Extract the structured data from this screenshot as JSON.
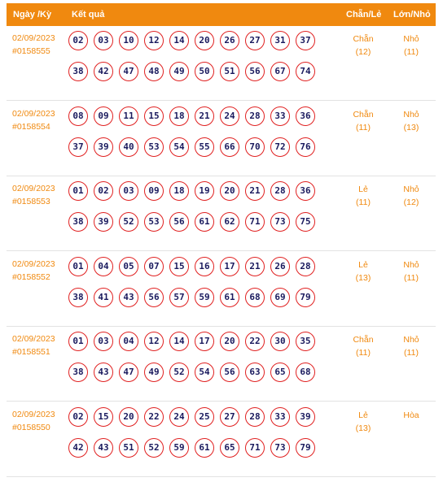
{
  "header": {
    "date_label": "Ngày /Kỳ",
    "result_label": "Kết quả",
    "even_odd_label": "Chẵn/Lẻ",
    "big_small_label": "Lớn/Nhỏ"
  },
  "rows": [
    {
      "date": "02/09/2023",
      "period": "#0158555",
      "balls": [
        "02",
        "03",
        "10",
        "12",
        "14",
        "20",
        "26",
        "27",
        "31",
        "37",
        "38",
        "42",
        "47",
        "48",
        "49",
        "50",
        "51",
        "56",
        "67",
        "74"
      ],
      "even_odd": "Chẵn",
      "even_odd_count": "(12)",
      "big_small": "Nhỏ",
      "big_small_count": "(11)"
    },
    {
      "date": "02/09/2023",
      "period": "#0158554",
      "balls": [
        "08",
        "09",
        "11",
        "15",
        "18",
        "21",
        "24",
        "28",
        "33",
        "36",
        "37",
        "39",
        "40",
        "53",
        "54",
        "55",
        "66",
        "70",
        "72",
        "76"
      ],
      "even_odd": "Chẵn",
      "even_odd_count": "(11)",
      "big_small": "Nhỏ",
      "big_small_count": "(13)"
    },
    {
      "date": "02/09/2023",
      "period": "#0158553",
      "balls": [
        "01",
        "02",
        "03",
        "09",
        "18",
        "19",
        "20",
        "21",
        "28",
        "36",
        "38",
        "39",
        "52",
        "53",
        "56",
        "61",
        "62",
        "71",
        "73",
        "75"
      ],
      "even_odd": "Lẻ",
      "even_odd_count": "(11)",
      "big_small": "Nhỏ",
      "big_small_count": "(12)"
    },
    {
      "date": "02/09/2023",
      "period": "#0158552",
      "balls": [
        "01",
        "04",
        "05",
        "07",
        "15",
        "16",
        "17",
        "21",
        "26",
        "28",
        "38",
        "41",
        "43",
        "56",
        "57",
        "59",
        "61",
        "68",
        "69",
        "79"
      ],
      "even_odd": "Lẻ",
      "even_odd_count": "(13)",
      "big_small": "Nhỏ",
      "big_small_count": "(11)"
    },
    {
      "date": "02/09/2023",
      "period": "#0158551",
      "balls": [
        "01",
        "03",
        "04",
        "12",
        "14",
        "17",
        "20",
        "22",
        "30",
        "35",
        "38",
        "43",
        "47",
        "49",
        "52",
        "54",
        "56",
        "63",
        "65",
        "68"
      ],
      "even_odd": "Chẵn",
      "even_odd_count": "(11)",
      "big_small": "Nhỏ",
      "big_small_count": "(11)"
    },
    {
      "date": "02/09/2023",
      "period": "#0158550",
      "balls": [
        "02",
        "15",
        "20",
        "22",
        "24",
        "25",
        "27",
        "28",
        "33",
        "39",
        "42",
        "43",
        "51",
        "52",
        "59",
        "61",
        "65",
        "71",
        "73",
        "79"
      ],
      "even_odd": "Lẻ",
      "even_odd_count": "(13)",
      "big_small": "Hòa",
      "big_small_count": ""
    }
  ]
}
